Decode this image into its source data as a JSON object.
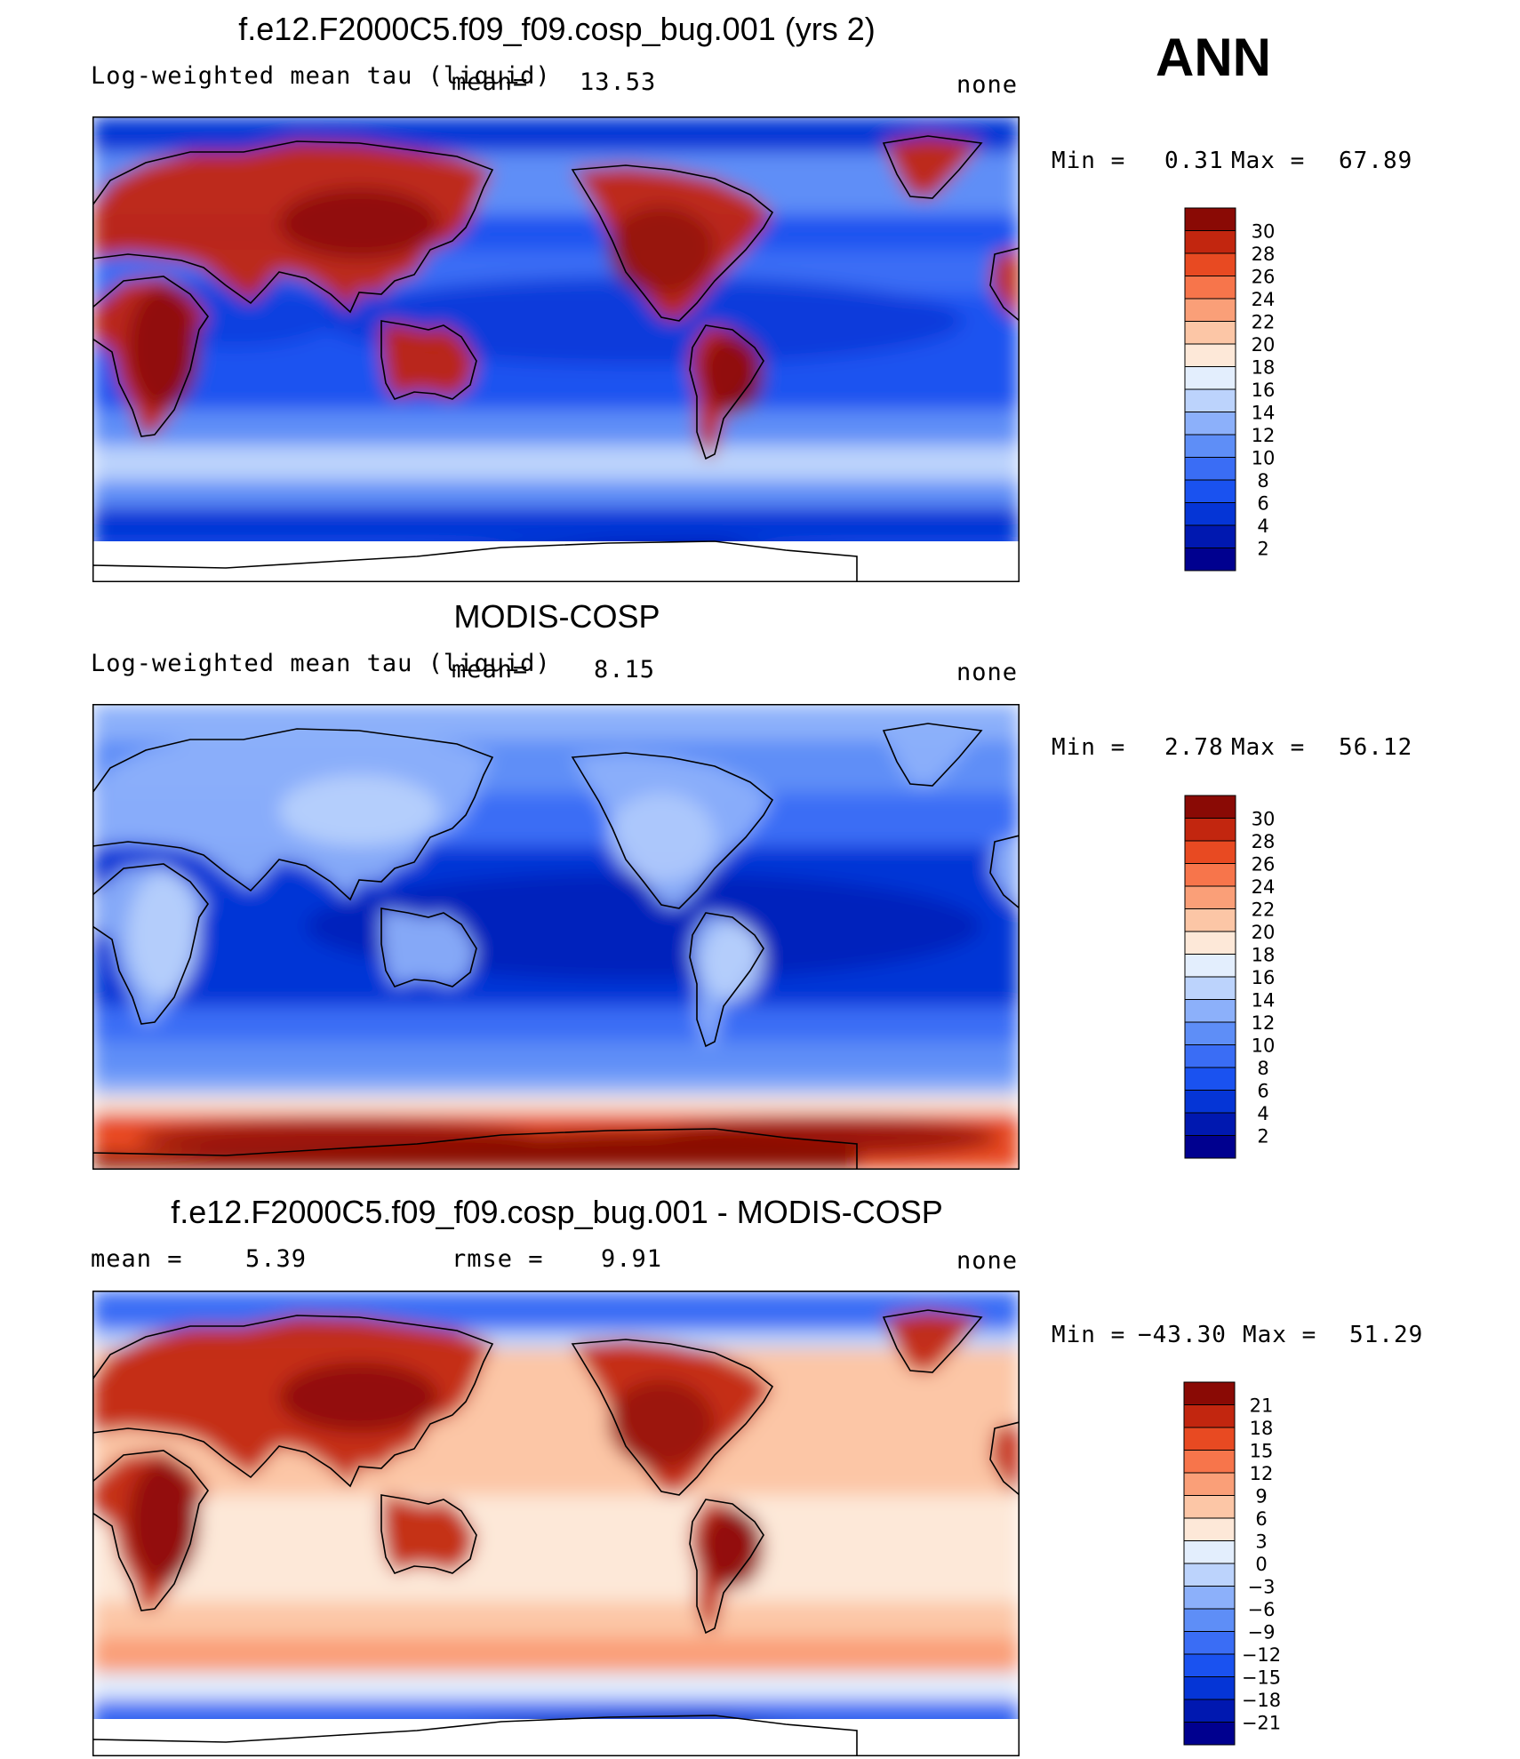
{
  "figure": {
    "season": "ANN",
    "palette_positive": "#7f0000",
    "palette_negative": "#00007f"
  },
  "panels": [
    {
      "title": "f.e12.F2000C5.f09_f09.cosp_bug.001 (yrs 2)",
      "left_label": "Log-weighted mean tau (liquid)",
      "center_label": "mean=",
      "center_value": "13.53",
      "right_label": "none",
      "min_label": "Min =",
      "min_value": "0.31",
      "max_label": "Max =",
      "max_value": "67.89",
      "mode": "model"
    },
    {
      "title": "MODIS-COSP",
      "left_label": "Log-weighted mean tau (liquid)",
      "center_label": "mean=",
      "center_value": "8.15",
      "right_label": "none",
      "min_label": "Min =",
      "min_value": "2.78",
      "max_label": "Max =",
      "max_value": "56.12",
      "mode": "obs"
    },
    {
      "title": "f.e12.F2000C5.f09_f09.cosp_bug.001 - MODIS-COSP",
      "left_label": "mean =",
      "left_value": "5.39",
      "center_label": "rmse =",
      "center_value": "9.91",
      "right_label": "none",
      "min_label": "Min =",
      "min_value": "−43.30",
      "max_label": "Max =",
      "max_value": "51.29",
      "mode": "diff"
    }
  ],
  "chart_data": [
    {
      "type": "heatmap",
      "title": "f.e12.F2000C5.f09_f09.cosp_bug.001 (yrs 2)",
      "variable": "Log-weighted mean tau (liquid)",
      "units": "none",
      "mean": 13.53,
      "min": 0.31,
      "max": 67.89,
      "colorbar_levels": [
        2,
        4,
        6,
        8,
        10,
        12,
        14,
        16,
        18,
        20,
        22,
        24,
        26,
        28,
        30
      ],
      "colorbar_tick_labels": [
        "30",
        "28",
        "26",
        "24",
        "22",
        "20",
        "18",
        "16",
        "14",
        "12",
        "10",
        "8",
        "6",
        "4",
        "2"
      ],
      "colorbar_colors": [
        "#00008f",
        "#0018b0",
        "#0535d6",
        "#1a52f0",
        "#3a6df5",
        "#5e8ef7",
        "#8cb0fa",
        "#bcd3fc",
        "#e3eefd",
        "#fde8d8",
        "#fcc6a6",
        "#fa9f78",
        "#f7754b",
        "#e84a22",
        "#c2260f",
        "#8a0a05"
      ]
    },
    {
      "type": "heatmap",
      "title": "MODIS-COSP",
      "variable": "Log-weighted mean tau (liquid)",
      "units": "none",
      "mean": 8.15,
      "min": 2.78,
      "max": 56.12,
      "colorbar_levels": [
        2,
        4,
        6,
        8,
        10,
        12,
        14,
        16,
        18,
        20,
        22,
        24,
        26,
        28,
        30
      ],
      "colorbar_tick_labels": [
        "30",
        "28",
        "26",
        "24",
        "22",
        "20",
        "18",
        "16",
        "14",
        "12",
        "10",
        "8",
        "6",
        "4",
        "2"
      ],
      "colorbar_colors": [
        "#00008f",
        "#0018b0",
        "#0535d6",
        "#1a52f0",
        "#3a6df5",
        "#5e8ef7",
        "#8cb0fa",
        "#bcd3fc",
        "#e3eefd",
        "#fde8d8",
        "#fcc6a6",
        "#fa9f78",
        "#f7754b",
        "#e84a22",
        "#c2260f",
        "#8a0a05"
      ]
    },
    {
      "type": "heatmap",
      "title": "f.e12.F2000C5.f09_f09.cosp_bug.001 - MODIS-COSP",
      "units": "none",
      "mean": 5.39,
      "rmse": 9.91,
      "min": -43.3,
      "max": 51.29,
      "colorbar_levels": [
        -21,
        -18,
        -15,
        -12,
        -9,
        -6,
        -3,
        0,
        3,
        6,
        9,
        12,
        15,
        18,
        21
      ],
      "colorbar_tick_labels": [
        "21",
        "18",
        "15",
        "12",
        "9",
        "6",
        "3",
        "0",
        "−3",
        "−6",
        "−9",
        "−12",
        "−15",
        "−18",
        "−21"
      ],
      "colorbar_colors": [
        "#00008f",
        "#0018b0",
        "#0535d6",
        "#1a52f0",
        "#3a6df5",
        "#5e8ef7",
        "#8cb0fa",
        "#bcd3fc",
        "#e3eefd",
        "#fde8d8",
        "#fcc6a6",
        "#fa9f78",
        "#f7754b",
        "#e84a22",
        "#c2260f",
        "#8a0a05"
      ]
    }
  ]
}
